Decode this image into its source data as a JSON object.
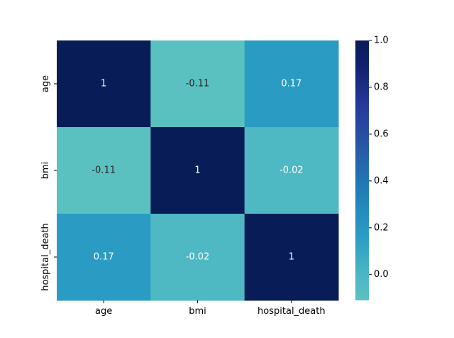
{
  "chart_data": {
    "type": "heatmap",
    "title": "",
    "xlabel": "",
    "ylabel": "",
    "x_categories": [
      "age",
      "bmi",
      "hospital_death"
    ],
    "y_categories": [
      "age",
      "bmi",
      "hospital_death"
    ],
    "values": [
      [
        1,
        -0.11,
        0.17
      ],
      [
        -0.11,
        1,
        -0.02
      ],
      [
        0.17,
        -0.02,
        1
      ]
    ],
    "cell_labels": [
      [
        "1",
        "-0.11",
        "0.17"
      ],
      [
        "-0.11",
        "1",
        "-0.02"
      ],
      [
        "0.17",
        "-0.02",
        "1"
      ]
    ],
    "colormap": "YlGnBu",
    "color_range": [
      -0.11,
      1.0
    ],
    "colorbar_ticks": [
      "0.0",
      "0.2",
      "0.4",
      "0.6",
      "0.8",
      "1.0"
    ],
    "colorbar_tick_values": [
      0.0,
      0.2,
      0.4,
      0.6,
      0.8,
      1.0
    ],
    "colorbar_stops": [
      {
        "v": 0.0,
        "color": "#5bc0c0"
      },
      {
        "v": 0.1,
        "color": "#4bb6c4"
      },
      {
        "v": 0.25,
        "color": "#2a9cc4"
      },
      {
        "v": 0.45,
        "color": "#2078b4"
      },
      {
        "v": 0.6,
        "color": "#2856a6"
      },
      {
        "v": 0.75,
        "color": "#253a99"
      },
      {
        "v": 0.9,
        "color": "#122070"
      },
      {
        "v": 1.0,
        "color": "#081d58"
      }
    ],
    "text_color_dark": "#262626",
    "text_color_light": "#ffffff",
    "grid": false,
    "legend": "colorbar-right"
  }
}
